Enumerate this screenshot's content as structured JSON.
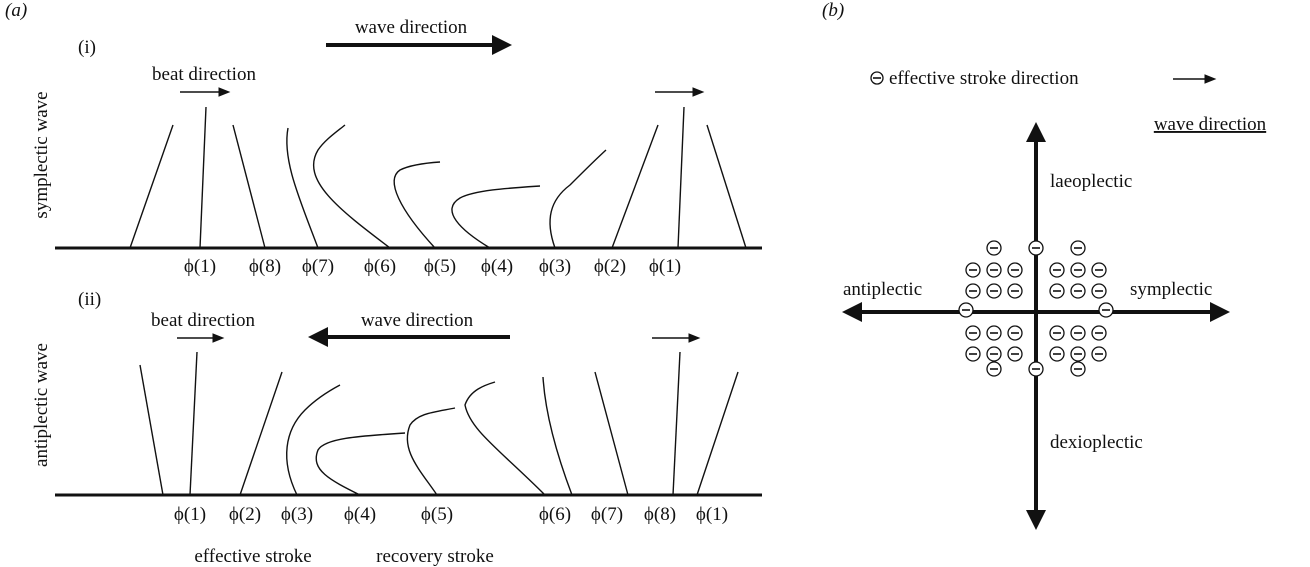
{
  "panel_a": {
    "label": "(a)",
    "wave_direction": "wave direction",
    "symplectic": {
      "label": "(i)",
      "title": "symplectic wave",
      "beat_direction": "beat direction",
      "phases": [
        "ϕ(1)",
        "ϕ(8)",
        "ϕ(7)",
        "ϕ(6)",
        "ϕ(5)",
        "ϕ(4)",
        "ϕ(3)",
        "ϕ(2)",
        "ϕ(1)"
      ]
    },
    "antiplectic": {
      "label": "(ii)",
      "title": "antiplectic wave",
      "beat_direction": "beat direction",
      "wave_direction": "wave direction",
      "phases": [
        "ϕ(1)",
        "ϕ(2)",
        "ϕ(3)",
        "ϕ(4)",
        "ϕ(5)",
        "ϕ(6)",
        "ϕ(7)",
        "ϕ(8)",
        "ϕ(1)"
      ],
      "effective_stroke": "effective stroke",
      "recovery_stroke": "recovery stroke"
    }
  },
  "panel_b": {
    "label": "(b)",
    "effective_stroke_direction": "effective stroke direction",
    "wave_direction": "wave direction",
    "laeoplectic": "laeoplectic",
    "antiplectic": "antiplectic",
    "symplectic": "symplectic",
    "dexioplectic": "dexioplectic"
  }
}
